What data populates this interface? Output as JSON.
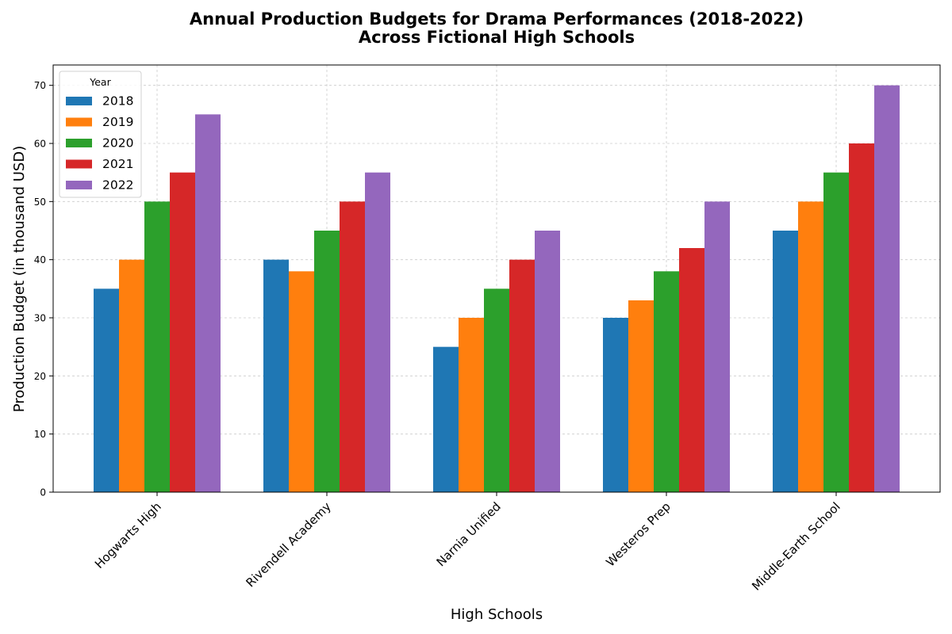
{
  "chart_data": {
    "type": "bar",
    "title_lines": [
      "Annual Production Budgets for Drama Performances (2018-2022)",
      "Across Fictional High Schools"
    ],
    "xlabel": "High Schools",
    "ylabel": "Production Budget (in thousand USD)",
    "ylim": [
      0,
      73.5
    ],
    "yticks": [
      0,
      10,
      20,
      30,
      40,
      50,
      60,
      70
    ],
    "grid": true,
    "legend": {
      "title": "Year",
      "placement": "top-left"
    },
    "categories": [
      "Hogwarts High",
      "Rivendell Academy",
      "Narnia Unified",
      "Westeros Prep",
      "Middle-Earth School"
    ],
    "series": [
      {
        "name": "2018",
        "color": "#1f77b4",
        "values": [
          35,
          40,
          25,
          30,
          45
        ]
      },
      {
        "name": "2019",
        "color": "#ff7f0e",
        "values": [
          40,
          38,
          30,
          33,
          50
        ]
      },
      {
        "name": "2020",
        "color": "#2ca02c",
        "values": [
          50,
          45,
          35,
          38,
          55
        ]
      },
      {
        "name": "2021",
        "color": "#d62728",
        "values": [
          55,
          50,
          40,
          42,
          60
        ]
      },
      {
        "name": "2022",
        "color": "#9467bd",
        "values": [
          65,
          55,
          45,
          50,
          70
        ]
      }
    ]
  }
}
